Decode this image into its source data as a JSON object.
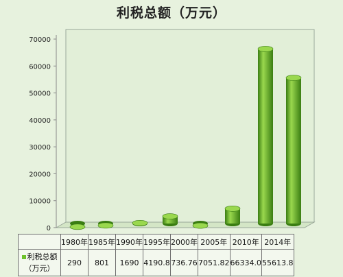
{
  "chart_data": {
    "type": "bar",
    "title": "利税总额（万元）",
    "categories": [
      "1980年",
      "1985年",
      "1990年",
      "1995年",
      "2000年",
      "2005年",
      "2010年",
      "2014年"
    ],
    "series": [
      {
        "name": "利税总额（万元）",
        "values": [
          290,
          801,
          1690,
          4190.8,
          736.76,
          7051.82,
          66334.0,
          55613.8
        ],
        "value_labels": [
          "290",
          "801",
          "1690",
          "4190.8",
          "736.76",
          "7051.82",
          "66334.0",
          "55613.8"
        ]
      }
    ],
    "yticks": [
      "0",
      "10000",
      "20000",
      "30000",
      "40000",
      "50000",
      "60000",
      "70000"
    ],
    "ylim": [
      0,
      70000
    ],
    "grid": false,
    "legend": "data-table",
    "colors": {
      "bar": "#5ab320",
      "bar_light": "#9ad84e",
      "bar_dark": "#3a7d12",
      "background": "#e7f2de"
    }
  },
  "legend": {
    "line1": "利税总额",
    "line2": "（万元）"
  }
}
